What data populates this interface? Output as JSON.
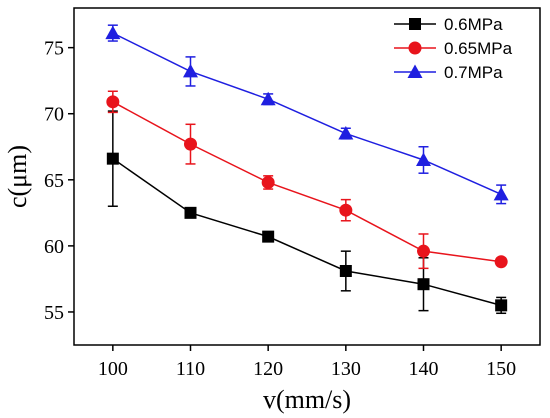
{
  "chart_data": {
    "type": "line",
    "title": "",
    "xlabel": "v(mm/s)",
    "ylabel": "c(μm)",
    "x": [
      100,
      110,
      120,
      130,
      140,
      150
    ],
    "xlim": [
      95,
      155
    ],
    "ylim": [
      52.5,
      78
    ],
    "x_ticks": [
      100,
      110,
      120,
      130,
      140,
      150
    ],
    "y_ticks": [
      55,
      60,
      65,
      70,
      75
    ],
    "x_tick_labels": [
      "100",
      "110",
      "120",
      "130",
      "140",
      "150"
    ],
    "y_tick_labels": [
      "55",
      "60",
      "65",
      "70",
      "75"
    ],
    "grid": false,
    "legend_position": "top-right",
    "series": [
      {
        "name": "0.6MPa",
        "color": "#000000",
        "marker": "square",
        "values": [
          66.6,
          62.5,
          60.7,
          58.1,
          57.1,
          55.5
        ],
        "errors": [
          3.6,
          0.2,
          0.3,
          1.5,
          2.0,
          0.6
        ]
      },
      {
        "name": "0.65MPa",
        "color": "#e8141c",
        "marker": "circle",
        "values": [
          70.9,
          67.7,
          64.8,
          62.7,
          59.6,
          58.8
        ],
        "errors": [
          0.8,
          1.5,
          0.5,
          0.8,
          1.3,
          0.2
        ]
      },
      {
        "name": "0.7MPa",
        "color": "#1f1fe0",
        "marker": "triangle",
        "values": [
          76.1,
          73.2,
          71.1,
          68.5,
          66.5,
          63.9
        ],
        "errors": [
          0.6,
          1.1,
          0.4,
          0.4,
          1.0,
          0.7
        ]
      }
    ]
  }
}
